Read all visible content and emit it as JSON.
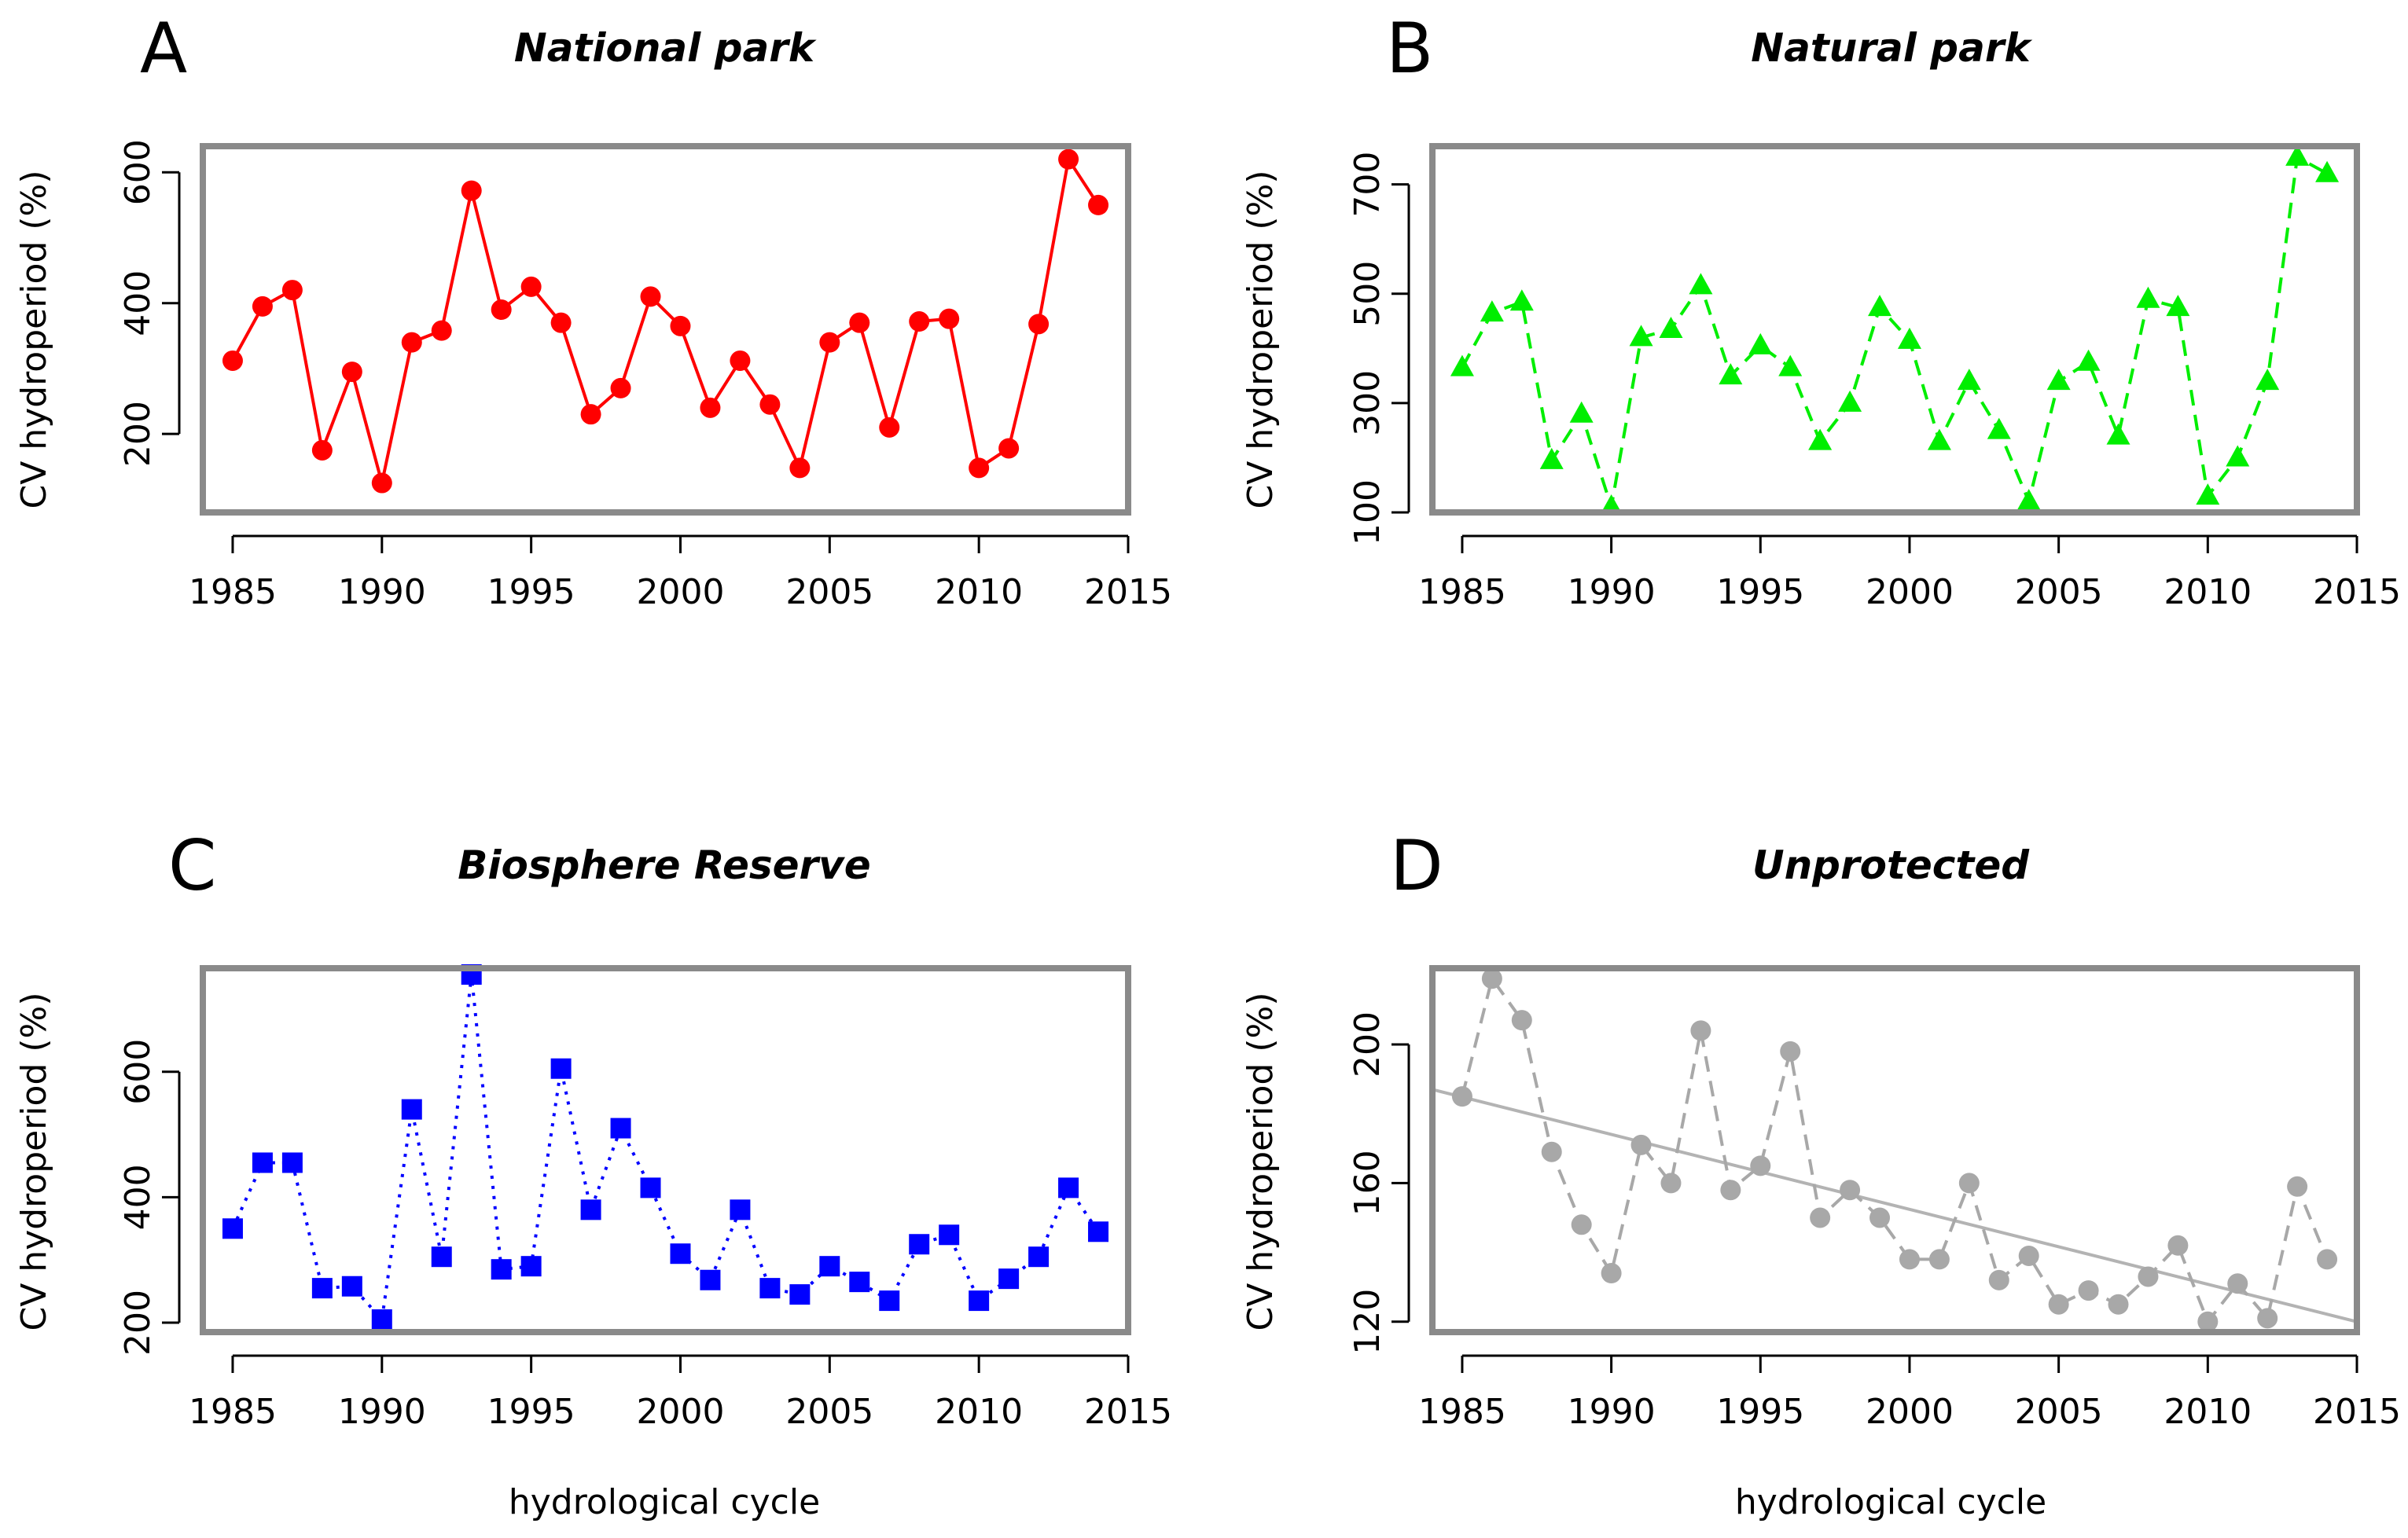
{
  "chart_data": [
    {
      "panel": "A",
      "type": "line",
      "title": "National park",
      "xlabel": "",
      "ylabel": "CV hydroperiod (%)",
      "xlim": [
        1984,
        2015
      ],
      "ylim": [
        80,
        640
      ],
      "x_ticks": [
        "1985",
        "1990",
        "1995",
        "2000",
        "2005",
        "2010",
        "2015"
      ],
      "y_ticks": [
        "200",
        "400",
        "600"
      ],
      "marker": "circle",
      "line_style": "solid",
      "color": "#ff0000",
      "series": [
        {
          "name": "National park",
          "x": [
            1985,
            1986,
            1987,
            1988,
            1989,
            1990,
            1991,
            1992,
            1993,
            1994,
            1995,
            1996,
            1997,
            1998,
            1999,
            2000,
            2001,
            2002,
            2003,
            2004,
            2005,
            2006,
            2007,
            2008,
            2009,
            2010,
            2011,
            2012,
            2013,
            2014
          ],
          "values": [
            312,
            395,
            420,
            175,
            295,
            125,
            340,
            358,
            572,
            390,
            425,
            370,
            230,
            270,
            410,
            365,
            240,
            312,
            245,
            148,
            340,
            370,
            210,
            372,
            376,
            148,
            178,
            368,
            620,
            550
          ]
        }
      ]
    },
    {
      "panel": "B",
      "type": "line",
      "title": "Natural park",
      "xlabel": "",
      "ylabel": "CV hydroperiod (%)",
      "xlim": [
        1984,
        2015
      ],
      "ylim": [
        100,
        770
      ],
      "x_ticks": [
        "1985",
        "1990",
        "1995",
        "2000",
        "2005",
        "2010",
        "2015"
      ],
      "y_ticks": [
        "100",
        "300",
        "500",
        "700"
      ],
      "marker": "triangle",
      "line_style": "dashed",
      "color": "#00ee00",
      "series": [
        {
          "name": "Natural park",
          "x": [
            1985,
            1986,
            1987,
            1988,
            1989,
            1990,
            1991,
            1992,
            1993,
            1994,
            1995,
            1996,
            1997,
            1998,
            1999,
            2000,
            2001,
            2002,
            2003,
            2004,
            2005,
            2006,
            2007,
            2008,
            2009,
            2010,
            2011,
            2012,
            2013,
            2014
          ],
          "values": [
            365,
            465,
            485,
            195,
            280,
            110,
            420,
            435,
            515,
            350,
            405,
            365,
            230,
            300,
            475,
            415,
            230,
            340,
            250,
            120,
            340,
            375,
            240,
            490,
            475,
            130,
            200,
            340,
            750,
            720
          ]
        }
      ]
    },
    {
      "panel": "C",
      "type": "line",
      "title": "Biosphere Reserve",
      "xlabel": "hydrological cycle",
      "ylabel": "CV hydroperiod (%)",
      "xlim": [
        1984,
        2015
      ],
      "ylim": [
        185,
        765
      ],
      "x_ticks": [
        "1985",
        "1990",
        "1995",
        "2000",
        "2005",
        "2010",
        "2015"
      ],
      "y_ticks": [
        "200",
        "400",
        "600"
      ],
      "marker": "square",
      "line_style": "dotted",
      "color": "#0000ff",
      "series": [
        {
          "name": "Biosphere Reserve",
          "x": [
            1985,
            1986,
            1987,
            1988,
            1989,
            1990,
            1991,
            1992,
            1993,
            1994,
            1995,
            1996,
            1997,
            1998,
            1999,
            2000,
            2001,
            2002,
            2003,
            2004,
            2005,
            2006,
            2007,
            2008,
            2009,
            2010,
            2011,
            2012,
            2013,
            2014
          ],
          "values": [
            350,
            455,
            455,
            255,
            258,
            205,
            540,
            305,
            755,
            285,
            290,
            605,
            380,
            510,
            415,
            310,
            268,
            380,
            255,
            245,
            290,
            265,
            235,
            325,
            340,
            235,
            270,
            305,
            415,
            345
          ]
        }
      ]
    },
    {
      "panel": "D",
      "type": "line",
      "title": "Unprotected",
      "xlabel": "hydrological cycle",
      "ylabel": "CV hydroperiod (%)",
      "xlim": [
        1984,
        2015
      ],
      "ylim": [
        117,
        222
      ],
      "x_ticks": [
        "1985",
        "1990",
        "1995",
        "2000",
        "2005",
        "2010",
        "2015"
      ],
      "y_ticks": [
        "120",
        "160",
        "200"
      ],
      "marker": "circle",
      "line_style": "dashed",
      "color": "#a8a8a8",
      "series": [
        {
          "name": "Unprotected",
          "x": [
            1985,
            1986,
            1987,
            1988,
            1989,
            1990,
            1991,
            1992,
            1993,
            1994,
            1995,
            1996,
            1997,
            1998,
            1999,
            2000,
            2001,
            2002,
            2003,
            2004,
            2005,
            2006,
            2007,
            2008,
            2009,
            2010,
            2011,
            2012,
            2013,
            2014
          ],
          "values": [
            185,
            219,
            207,
            169,
            148,
            134,
            171,
            160,
            204,
            158,
            165,
            198,
            150,
            158,
            150,
            138,
            138,
            160,
            132,
            139,
            125,
            129,
            125,
            133,
            142,
            120,
            131,
            121,
            159,
            138
          ]
        }
      ],
      "trend_line": {
        "x": [
          1984,
          2015
        ],
        "values": [
          187,
          120
        ]
      }
    }
  ]
}
